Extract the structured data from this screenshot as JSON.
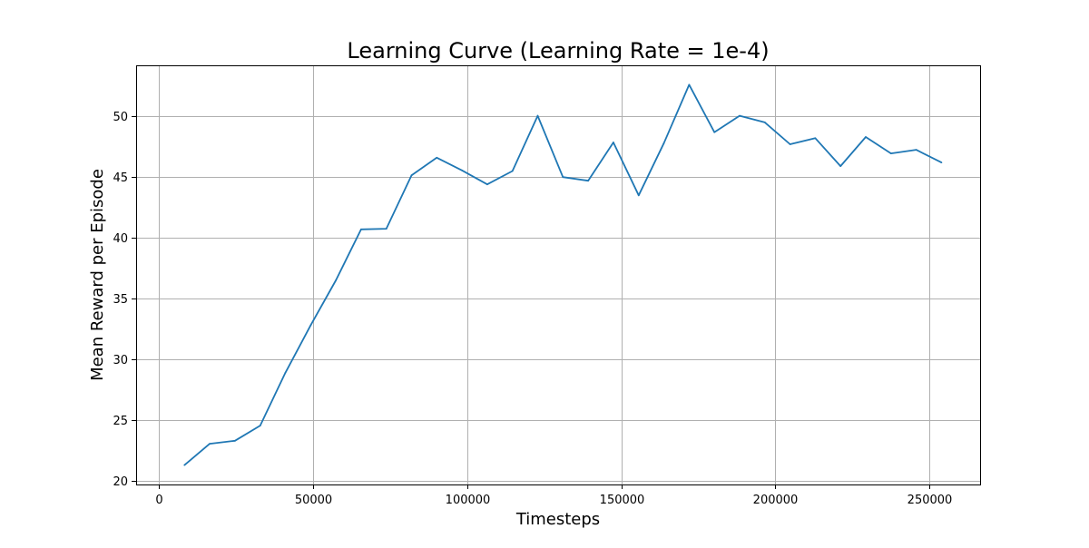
{
  "chart_data": {
    "type": "line",
    "title": "Learning Curve (Learning Rate = 1e-4)",
    "xlabel": "Timesteps",
    "ylabel": "Mean Reward per Episode",
    "xlim": [
      -7500,
      266500
    ],
    "ylim": [
      19.7,
      54.2
    ],
    "xticks": [
      0,
      50000,
      100000,
      150000,
      200000,
      250000
    ],
    "yticks": [
      20,
      25,
      30,
      35,
      40,
      45,
      50
    ],
    "grid": true,
    "series": [
      {
        "color": "#1f77b4",
        "x": [
          8192,
          16384,
          24576,
          32768,
          40960,
          49152,
          57344,
          65536,
          73728,
          81920,
          90112,
          98304,
          106496,
          114688,
          122880,
          131072,
          139264,
          147456,
          155648,
          163840,
          172032,
          180224,
          188416,
          196608,
          204800,
          212992,
          221184,
          229376,
          237568,
          245760,
          253952
        ],
        "y": [
          21.3,
          23.05,
          23.3,
          24.55,
          28.9,
          32.8,
          36.5,
          40.7,
          40.75,
          45.15,
          46.6,
          45.55,
          44.4,
          45.5,
          50.05,
          45.0,
          44.7,
          47.85,
          43.5,
          47.8,
          52.6,
          48.7,
          50.05,
          49.5,
          47.7,
          48.2,
          45.9,
          48.3,
          46.95,
          47.25,
          46.2
        ]
      }
    ]
  }
}
